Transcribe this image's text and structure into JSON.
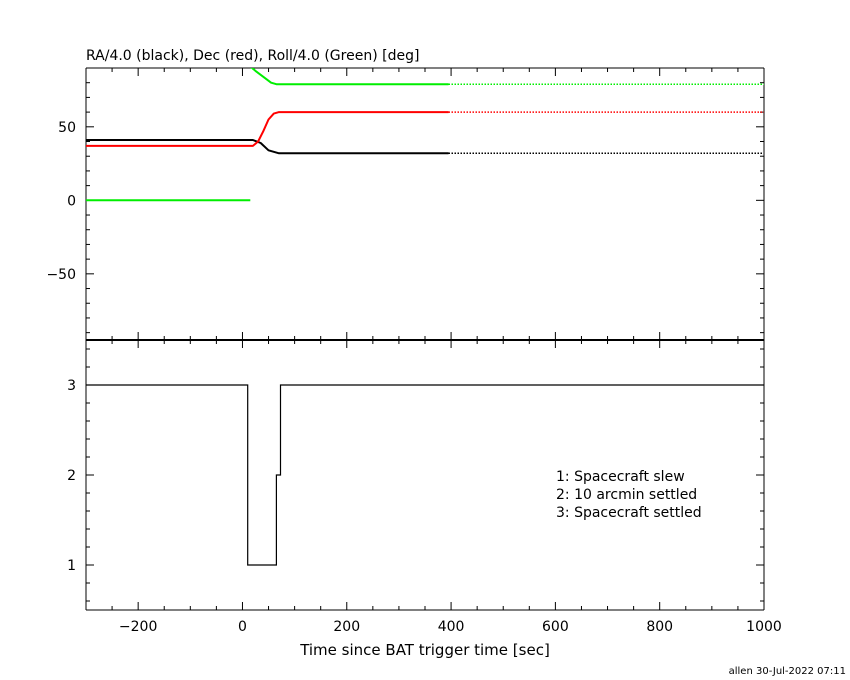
{
  "colors": {
    "ra": "#000000",
    "dec": "#ff0000",
    "roll": "#00ee00",
    "axis": "#000000"
  },
  "footer": "allen 30-Jul-2022 07:11",
  "chart_data": [
    {
      "type": "line",
      "title": "RA/4.0 (black), Dec (red), Roll/4.0 (Green) [deg]",
      "xlim": [
        -300,
        1000
      ],
      "ylim": [
        -95,
        90
      ],
      "yticks": [
        -50,
        0,
        50
      ],
      "grid": false,
      "series": [
        {
          "key": "ra",
          "color": "#000000",
          "style": "solid",
          "x": [
            -300,
            20,
            35,
            50,
            70,
            395
          ],
          "y": [
            41,
            41,
            39,
            34,
            32,
            32
          ]
        },
        {
          "key": "ra",
          "color": "#000000",
          "style": "dotted",
          "x": [
            395,
            1000
          ],
          "y": [
            32,
            32
          ]
        },
        {
          "key": "dec",
          "color": "#ff0000",
          "style": "solid",
          "x": [
            -300,
            20,
            30,
            40,
            50,
            60,
            70,
            395
          ],
          "y": [
            37,
            37,
            40,
            47,
            55,
            59,
            60,
            60
          ]
        },
        {
          "key": "dec",
          "color": "#ff0000",
          "style": "dotted",
          "x": [
            395,
            1000
          ],
          "y": [
            60,
            60
          ]
        },
        {
          "key": "roll",
          "color": "#00ee00",
          "style": "solid",
          "x": [
            -300,
            15
          ],
          "y": [
            0,
            0
          ]
        },
        {
          "key": "roll",
          "color": "#00ee00",
          "style": "solid",
          "x": [
            15,
            25,
            40,
            55,
            65,
            395
          ],
          "y": [
            91,
            88,
            84,
            80,
            79,
            79
          ]
        },
        {
          "key": "roll",
          "color": "#00ee00",
          "style": "dotted",
          "x": [
            395,
            1000
          ],
          "y": [
            79,
            79
          ]
        }
      ]
    },
    {
      "type": "line",
      "step": true,
      "xlim": [
        -300,
        1000
      ],
      "ylim": [
        0.5,
        3.5
      ],
      "yticks": [
        1,
        2,
        3
      ],
      "xticks": [
        -200,
        0,
        200,
        400,
        600,
        800,
        1000
      ],
      "xlabel": "Time since BAT trigger time [sec]",
      "grid": false,
      "series": [
        {
          "color": "#000000",
          "x": [
            -300,
            10,
            10,
            65,
            65,
            73,
            73,
            1000
          ],
          "y": [
            3,
            3,
            1,
            1,
            2,
            2,
            3,
            3
          ]
        }
      ],
      "annotations": [
        "1: Spacecraft slew",
        "2: 10 arcmin settled",
        "3: Spacecraft settled"
      ]
    }
  ]
}
